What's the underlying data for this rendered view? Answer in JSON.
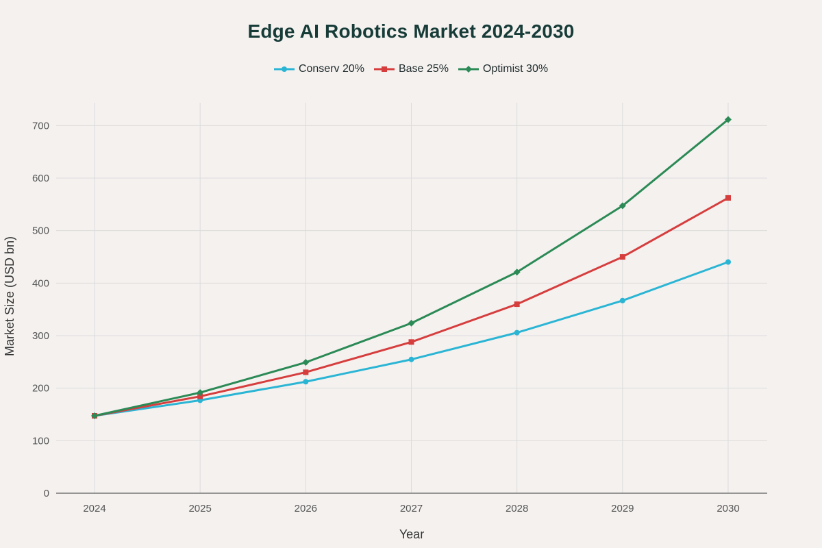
{
  "chart_data": {
    "type": "line",
    "title": "Edge AI Robotics Market 2024-2030",
    "xlabel": "Year",
    "ylabel": "Market Size (USD bn)",
    "x": [
      "2024",
      "2025",
      "2026",
      "2027",
      "2028",
      "2029",
      "2030"
    ],
    "ylim": [
      0,
      750
    ],
    "yticks": [
      0,
      100,
      200,
      300,
      400,
      500,
      600,
      700
    ],
    "grid": true,
    "legend_position": "top-center",
    "series": [
      {
        "name": "Conserv 20%",
        "color": "#2bb5d4",
        "marker": "circle",
        "values": [
          147.4,
          176.9,
          212.3,
          254.7,
          305.7,
          366.8,
          440.2
        ]
      },
      {
        "name": "Base 25%",
        "color": "#d63e3e",
        "marker": "square",
        "values": [
          147.4,
          184.3,
          230.3,
          287.9,
          359.9,
          449.9,
          562.3
        ]
      },
      {
        "name": "Optimist 30%",
        "color": "#2b8a55",
        "marker": "diamond",
        "values": [
          147.4,
          191.6,
          249.1,
          323.8,
          421.0,
          547.3,
          711.5
        ]
      }
    ]
  }
}
